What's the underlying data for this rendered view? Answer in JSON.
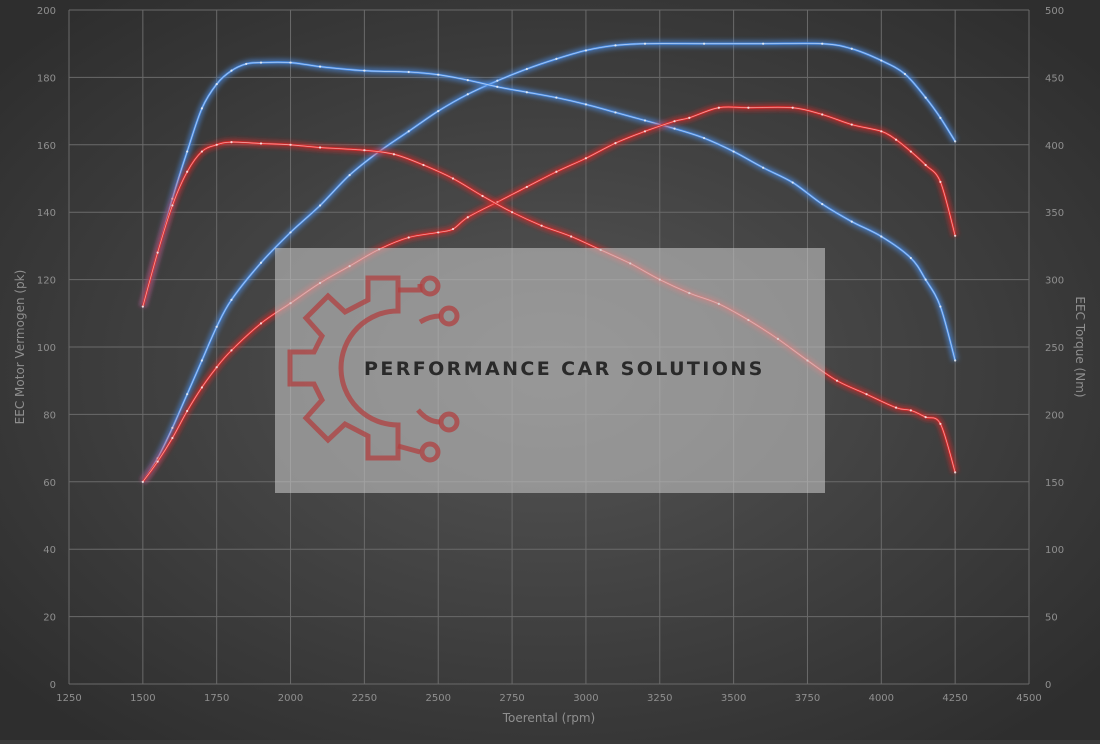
{
  "chart_data": {
    "type": "line",
    "title": "",
    "xlabel": "Toerental (rpm)",
    "ylabel_left": "EEC Motor Vermogen (pk)",
    "ylabel_right": "EEC Torque (Nm)",
    "xlim": [
      1250,
      4500
    ],
    "ylim_left": [
      0,
      200
    ],
    "ylim_right": [
      0,
      500
    ],
    "x_ticks": [
      1250,
      1500,
      1750,
      2000,
      2250,
      2500,
      2750,
      3000,
      3250,
      3500,
      3750,
      4000,
      4250,
      4500
    ],
    "y_ticks_left": [
      0,
      20,
      40,
      60,
      80,
      100,
      120,
      140,
      160,
      180,
      200
    ],
    "y_ticks_right": [
      0,
      50,
      100,
      150,
      200,
      250,
      300,
      350,
      400,
      450,
      500
    ],
    "grid": true,
    "legend": "none",
    "series": [
      {
        "axis": "left",
        "color": "#4a8ee8",
        "points": [
          [
            1500,
            60
          ],
          [
            1550,
            67
          ],
          [
            1600,
            76
          ],
          [
            1650,
            86
          ],
          [
            1700,
            96
          ],
          [
            1750,
            106
          ],
          [
            1800,
            114
          ],
          [
            1900,
            125
          ],
          [
            2000,
            134
          ],
          [
            2100,
            142
          ],
          [
            2200,
            151
          ],
          [
            2300,
            158
          ],
          [
            2400,
            164
          ],
          [
            2500,
            170
          ],
          [
            2600,
            175
          ],
          [
            2700,
            179
          ],
          [
            2800,
            182.5
          ],
          [
            2900,
            185.5
          ],
          [
            3000,
            188
          ],
          [
            3100,
            189.5
          ],
          [
            3200,
            190
          ],
          [
            3400,
            190
          ],
          [
            3600,
            190
          ],
          [
            3800,
            190
          ],
          [
            3900,
            188.5
          ],
          [
            4000,
            185
          ],
          [
            4080,
            181
          ],
          [
            4150,
            174
          ],
          [
            4200,
            168
          ],
          [
            4250,
            161
          ]
        ]
      },
      {
        "axis": "right",
        "color": "#4a8ee8",
        "points": [
          [
            1500,
            280
          ],
          [
            1550,
            320
          ],
          [
            1600,
            360
          ],
          [
            1650,
            395
          ],
          [
            1700,
            427
          ],
          [
            1750,
            445
          ],
          [
            1800,
            455
          ],
          [
            1850,
            460
          ],
          [
            1900,
            461
          ],
          [
            2000,
            461
          ],
          [
            2100,
            458
          ],
          [
            2250,
            455
          ],
          [
            2400,
            454
          ],
          [
            2500,
            452
          ],
          [
            2600,
            448
          ],
          [
            2700,
            443
          ],
          [
            2800,
            439
          ],
          [
            2900,
            435
          ],
          [
            3000,
            430
          ],
          [
            3100,
            424
          ],
          [
            3200,
            418
          ],
          [
            3300,
            412
          ],
          [
            3400,
            405
          ],
          [
            3500,
            395
          ],
          [
            3600,
            383
          ],
          [
            3700,
            372
          ],
          [
            3800,
            356
          ],
          [
            3900,
            343
          ],
          [
            4000,
            332
          ],
          [
            4100,
            316
          ],
          [
            4150,
            300
          ],
          [
            4200,
            280
          ],
          [
            4250,
            240
          ]
        ]
      },
      {
        "axis": "left",
        "color": "#e02828",
        "points": [
          [
            1500,
            60
          ],
          [
            1550,
            66
          ],
          [
            1600,
            73
          ],
          [
            1650,
            81
          ],
          [
            1700,
            88
          ],
          [
            1750,
            94
          ],
          [
            1800,
            99
          ],
          [
            1900,
            107
          ],
          [
            2000,
            113
          ],
          [
            2100,
            119
          ],
          [
            2200,
            124
          ],
          [
            2300,
            129
          ],
          [
            2400,
            132.5
          ],
          [
            2500,
            134
          ],
          [
            2550,
            135
          ],
          [
            2600,
            138.5
          ],
          [
            2700,
            143
          ],
          [
            2800,
            147.5
          ],
          [
            2900,
            152
          ],
          [
            3000,
            156
          ],
          [
            3100,
            160.5
          ],
          [
            3200,
            164
          ],
          [
            3300,
            167
          ],
          [
            3350,
            168
          ],
          [
            3450,
            171
          ],
          [
            3550,
            171
          ],
          [
            3700,
            171
          ],
          [
            3800,
            169
          ],
          [
            3900,
            166
          ],
          [
            4000,
            164
          ],
          [
            4050,
            161.5
          ],
          [
            4100,
            158
          ],
          [
            4150,
            154
          ],
          [
            4200,
            149
          ],
          [
            4250,
            133
          ]
        ]
      },
      {
        "axis": "right",
        "color": "#e02828",
        "points": [
          [
            1500,
            280
          ],
          [
            1550,
            320
          ],
          [
            1600,
            355
          ],
          [
            1650,
            380
          ],
          [
            1700,
            395
          ],
          [
            1750,
            400
          ],
          [
            1800,
            402
          ],
          [
            1900,
            401
          ],
          [
            2000,
            400
          ],
          [
            2100,
            398
          ],
          [
            2250,
            396
          ],
          [
            2350,
            393
          ],
          [
            2450,
            385
          ],
          [
            2550,
            375
          ],
          [
            2650,
            362
          ],
          [
            2750,
            350
          ],
          [
            2850,
            340
          ],
          [
            2950,
            332
          ],
          [
            3050,
            322
          ],
          [
            3150,
            312
          ],
          [
            3250,
            300
          ],
          [
            3350,
            290
          ],
          [
            3450,
            282
          ],
          [
            3550,
            270
          ],
          [
            3650,
            256
          ],
          [
            3750,
            240
          ],
          [
            3850,
            225
          ],
          [
            3950,
            215
          ],
          [
            4050,
            205
          ],
          [
            4100,
            203
          ],
          [
            4150,
            198
          ],
          [
            4200,
            193
          ],
          [
            4250,
            157
          ]
        ]
      }
    ]
  },
  "watermark": {
    "text": "PERFORMANCE CAR SOLUTIONS",
    "icon": "gear-circuit-logo-icon",
    "logo_color": "#b04040"
  }
}
